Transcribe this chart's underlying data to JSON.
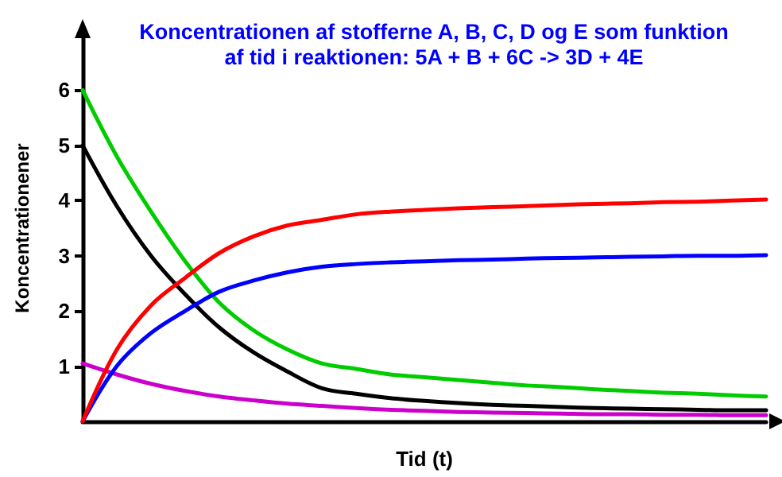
{
  "chart_data": {
    "type": "line",
    "title": "Koncentrationen af stofferne A, B, C, D og E som funktion",
    "subtitle": "af tid i reaktionen: 5A + B + 6C -> 3D + 4E",
    "xlabel": "Tid (t)",
    "ylabel": "Koncentrationener",
    "categories": [
      null,
      null,
      null,
      null,
      null,
      null,
      null,
      null,
      null,
      null,
      null,
      null,
      null,
      null,
      null,
      null,
      null,
      null,
      null,
      null,
      null
    ],
    "series": [
      {
        "color": "#000000",
        "values": [
          5,
          3.9,
          3.0,
          2.3,
          1.7,
          1.25,
          0.9,
          0.6,
          0.5,
          0.42,
          0.37,
          0.33,
          0.3,
          0.28,
          0.26,
          0.24,
          0.23,
          0.22,
          0.21,
          0.2,
          0.2
        ]
      },
      {
        "color": "#cc00cc",
        "values": [
          1.05,
          0.85,
          0.68,
          0.55,
          0.45,
          0.38,
          0.32,
          0.28,
          0.24,
          0.21,
          0.19,
          0.17,
          0.16,
          0.15,
          0.14,
          0.13,
          0.13,
          0.12,
          0.12,
          0.11,
          0.11
        ]
      },
      {
        "color": "#00cc00",
        "values": [
          6,
          4.8,
          3.8,
          2.9,
          2.15,
          1.65,
          1.3,
          1.05,
          0.95,
          0.85,
          0.8,
          0.75,
          0.7,
          0.65,
          0.62,
          0.58,
          0.55,
          0.52,
          0.5,
          0.47,
          0.45
        ]
      },
      {
        "color": "#0000ff",
        "values": [
          0,
          1.0,
          1.6,
          2.0,
          2.35,
          2.55,
          2.7,
          2.8,
          2.85,
          2.88,
          2.9,
          2.92,
          2.93,
          2.95,
          2.96,
          2.97,
          2.98,
          2.99,
          3.0,
          3.0,
          3.01
        ]
      },
      {
        "color": "#ff0000",
        "values": [
          0,
          1.3,
          2.1,
          2.6,
          3.05,
          3.35,
          3.55,
          3.65,
          3.75,
          3.8,
          3.83,
          3.86,
          3.88,
          3.9,
          3.92,
          3.94,
          3.95,
          3.97,
          3.98,
          4.0,
          4.02
        ]
      }
    ],
    "ylim": [
      0,
      7
    ],
    "yticks": [
      1,
      2,
      3,
      4,
      5,
      6
    ],
    "grid": false,
    "marker": "none",
    "line_style": "solid"
  }
}
